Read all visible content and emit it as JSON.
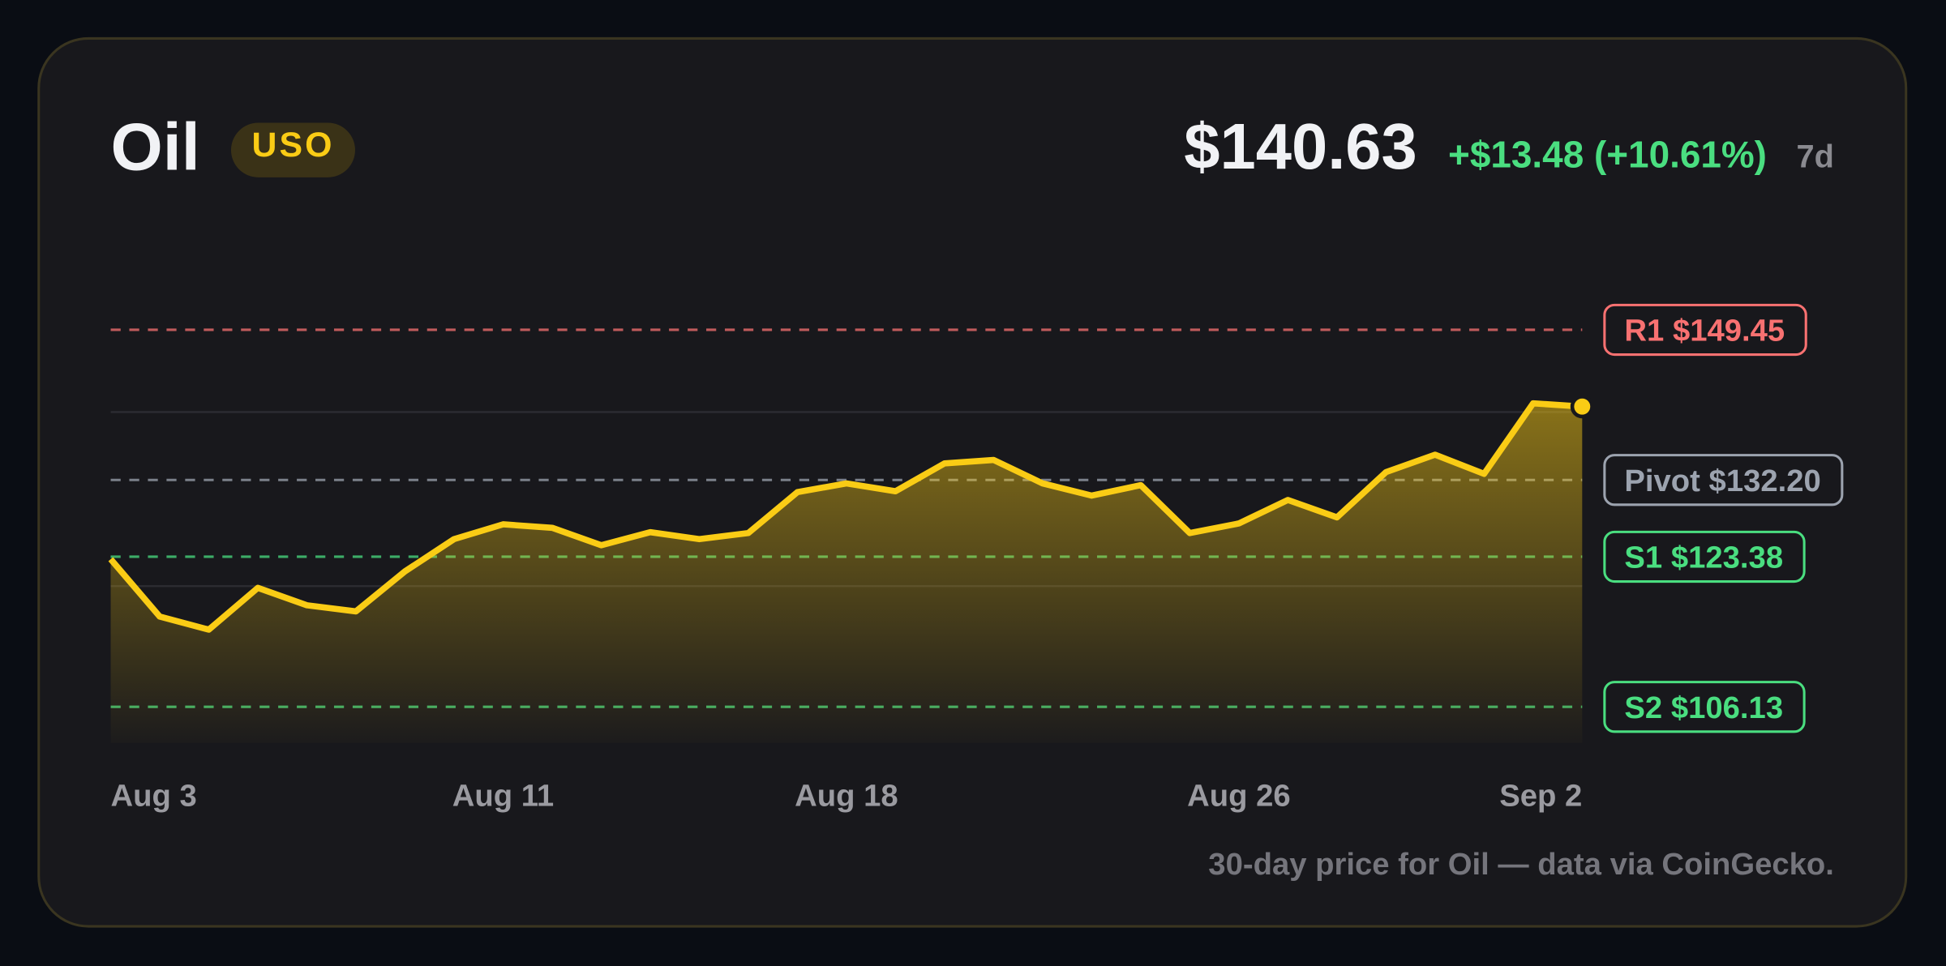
{
  "header": {
    "name": "Oil",
    "ticker": "USO",
    "price": "$140.63",
    "change": "+$13.48 (+10.61%)",
    "period": "7d"
  },
  "chart_data": {
    "type": "line",
    "categories": [
      "Aug 3",
      null,
      null,
      null,
      null,
      null,
      null,
      null,
      "Aug 11",
      null,
      null,
      null,
      null,
      null,
      null,
      "Aug 18",
      null,
      null,
      null,
      null,
      null,
      null,
      null,
      "Aug 26",
      null,
      null,
      null,
      null,
      null,
      null,
      "Sep 2"
    ],
    "series": [
      {
        "name": "Oil",
        "color": "#facc15",
        "values": [
          123.1,
          116.5,
          115.0,
          119.8,
          117.8,
          117.1,
          121.7,
          125.4,
          127.1,
          126.7,
          124.7,
          126.2,
          125.4,
          126.1,
          130.8,
          131.8,
          130.9,
          134.1,
          134.5,
          131.8,
          130.4,
          131.6,
          126.1,
          127.2,
          129.9,
          127.9,
          133.1,
          135.1,
          132.9,
          141.0,
          140.63
        ]
      }
    ],
    "ylim": [
      102,
      155
    ],
    "yticks": [
      120,
      140
    ],
    "grid": true,
    "levels": [
      {
        "label": "R1",
        "value": 149.45,
        "value_label": "$149.45",
        "color": "#f87171"
      },
      {
        "label": "Pivot",
        "value": 132.2,
        "value_label": "$132.20",
        "color": "#9ca3af"
      },
      {
        "label": "S1",
        "value": 123.38,
        "value_label": "$123.38",
        "color": "#4ade80"
      },
      {
        "label": "S2",
        "value": 106.13,
        "value_label": "$106.13",
        "color": "#4ade80"
      }
    ]
  },
  "footnote": "30-day price for Oil — data via CoinGecko."
}
